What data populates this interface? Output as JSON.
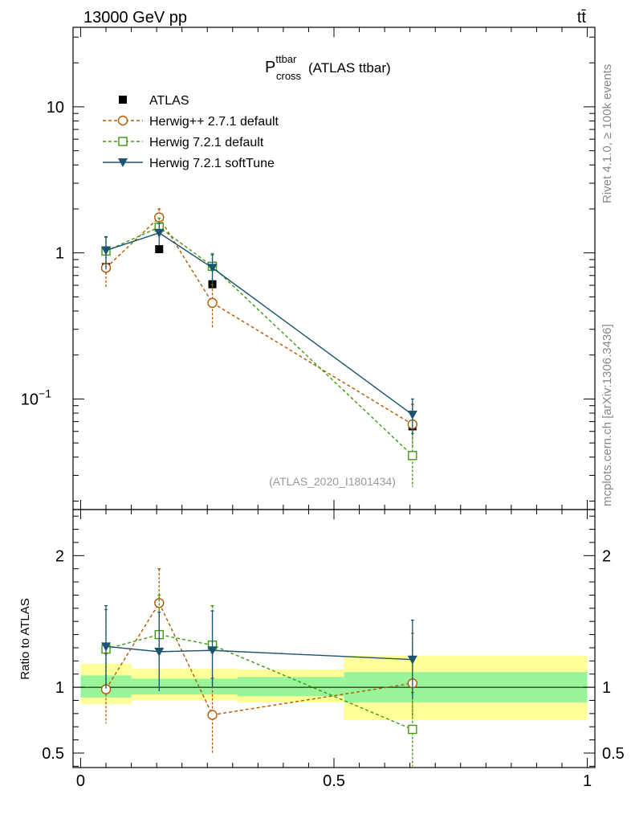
{
  "header": {
    "energy_label": "13000 GeV pp",
    "process_label": "tt̄"
  },
  "side_labels": {
    "rivet": "Rivet 4.1.0, ≥ 100k events",
    "mcplots": "mcplots.cern.ch [arXiv:1306.3436]"
  },
  "chart_data": {
    "type": "line",
    "title": {
      "main": "P",
      "superscript": "ttbar",
      "subscript": "cross",
      "suffix": "(ATLAS ttbar)"
    },
    "analysis_tag": "(ATLAS_2020_I1801434)",
    "xlim": [
      -0.015,
      1.015
    ],
    "ylim_main": [
      0.0175,
      35
    ],
    "y_scale_main": "log",
    "ylim_ratio": [
      0.39,
      2.35
    ],
    "ratio_ylabel": "Ratio to ATLAS",
    "x_tick_labels": [
      {
        "value": 0,
        "label": "0"
      },
      {
        "value": 0.5,
        "label": "0.5"
      },
      {
        "value": 1,
        "label": "1"
      }
    ],
    "main_y_tick_labels": [
      {
        "value": 10,
        "base": "10",
        "exp": ""
      },
      {
        "value": 1,
        "base": "1",
        "exp": ""
      },
      {
        "value": 0.1,
        "base": "10",
        "exp": "−1"
      }
    ],
    "ratio_y_tick_labels": [
      {
        "value": 2,
        "label": "2"
      },
      {
        "value": 1,
        "label": "1"
      },
      {
        "value": 0.5,
        "label": "0.5"
      }
    ],
    "bins": [
      [
        0,
        0.1
      ],
      [
        0.1,
        0.31
      ],
      [
        0.31,
        0.52
      ],
      [
        0.52,
        1.0
      ]
    ],
    "data": {
      "name": "ATLAS",
      "x": [
        0.05,
        0.155,
        0.26,
        0.655
      ],
      "y": [
        0.8,
        1.06,
        0.61,
        0.065
      ],
      "band_inner": [
        0.078,
        0.055,
        0.068,
        0.115
      ],
      "band_outer": [
        0.13,
        0.1,
        0.115,
        0.25
      ],
      "band_inner_hi": [
        0.09,
        0.065,
        0.078,
        0.115
      ],
      "band_outer_hi": [
        0.18,
        0.14,
        0.135,
        0.24
      ]
    },
    "series": [
      {
        "name": "Herwig++ 2.7.1 default",
        "color": "#b25800",
        "marker": "circle",
        "dashed": true,
        "x": [
          0.05,
          0.155,
          0.26,
          0.655
        ],
        "y": [
          0.79,
          1.75,
          0.455,
          0.067
        ],
        "yerr_lo": [
          0.21,
          0.26,
          0.15,
          0.02
        ],
        "yerr_hi": [
          0.22,
          0.25,
          0.15,
          0.025
        ],
        "ratio": [
          0.985,
          1.64,
          0.79,
          1.03
        ],
        "ratio_err_lo": [
          0.26,
          0.25,
          0.29,
          0.26
        ],
        "ratio_err_hi": [
          0.27,
          0.26,
          0.28,
          0.38
        ]
      },
      {
        "name": "Herwig 7.2.1 default",
        "color": "#3e9a10",
        "marker": "square",
        "dashed": true,
        "x": [
          0.05,
          0.155,
          0.26,
          0.655
        ],
        "y": [
          1.03,
          1.5,
          0.81,
          0.041
        ],
        "yerr_lo": [
          0.25,
          0.25,
          0.19,
          0.016
        ],
        "yerr_hi": [
          0.25,
          0.23,
          0.18,
          0.017
        ],
        "ratio": [
          1.29,
          1.4,
          1.32,
          0.68
        ],
        "ratio_err_lo": [
          0.31,
          0.33,
          0.31,
          0.28
        ],
        "ratio_err_hi": [
          0.3,
          0.3,
          0.3,
          0.28
        ]
      },
      {
        "name": "Herwig 7.2.1 softTune",
        "color": "#1a5470",
        "marker": "triangle-down",
        "dashed": false,
        "x": [
          0.05,
          0.155,
          0.26,
          0.655
        ],
        "y": [
          1.04,
          1.37,
          0.79,
          0.078
        ],
        "yerr_lo": [
          0.27,
          0.25,
          0.19,
          0.022
        ],
        "yerr_hi": [
          0.25,
          0.22,
          0.18,
          0.022
        ],
        "ratio": [
          1.31,
          1.27,
          1.28,
          1.21
        ],
        "ratio_err_lo": [
          0.32,
          0.3,
          0.28,
          0.3
        ],
        "ratio_err_hi": [
          0.31,
          0.3,
          0.3,
          0.3
        ]
      }
    ]
  }
}
